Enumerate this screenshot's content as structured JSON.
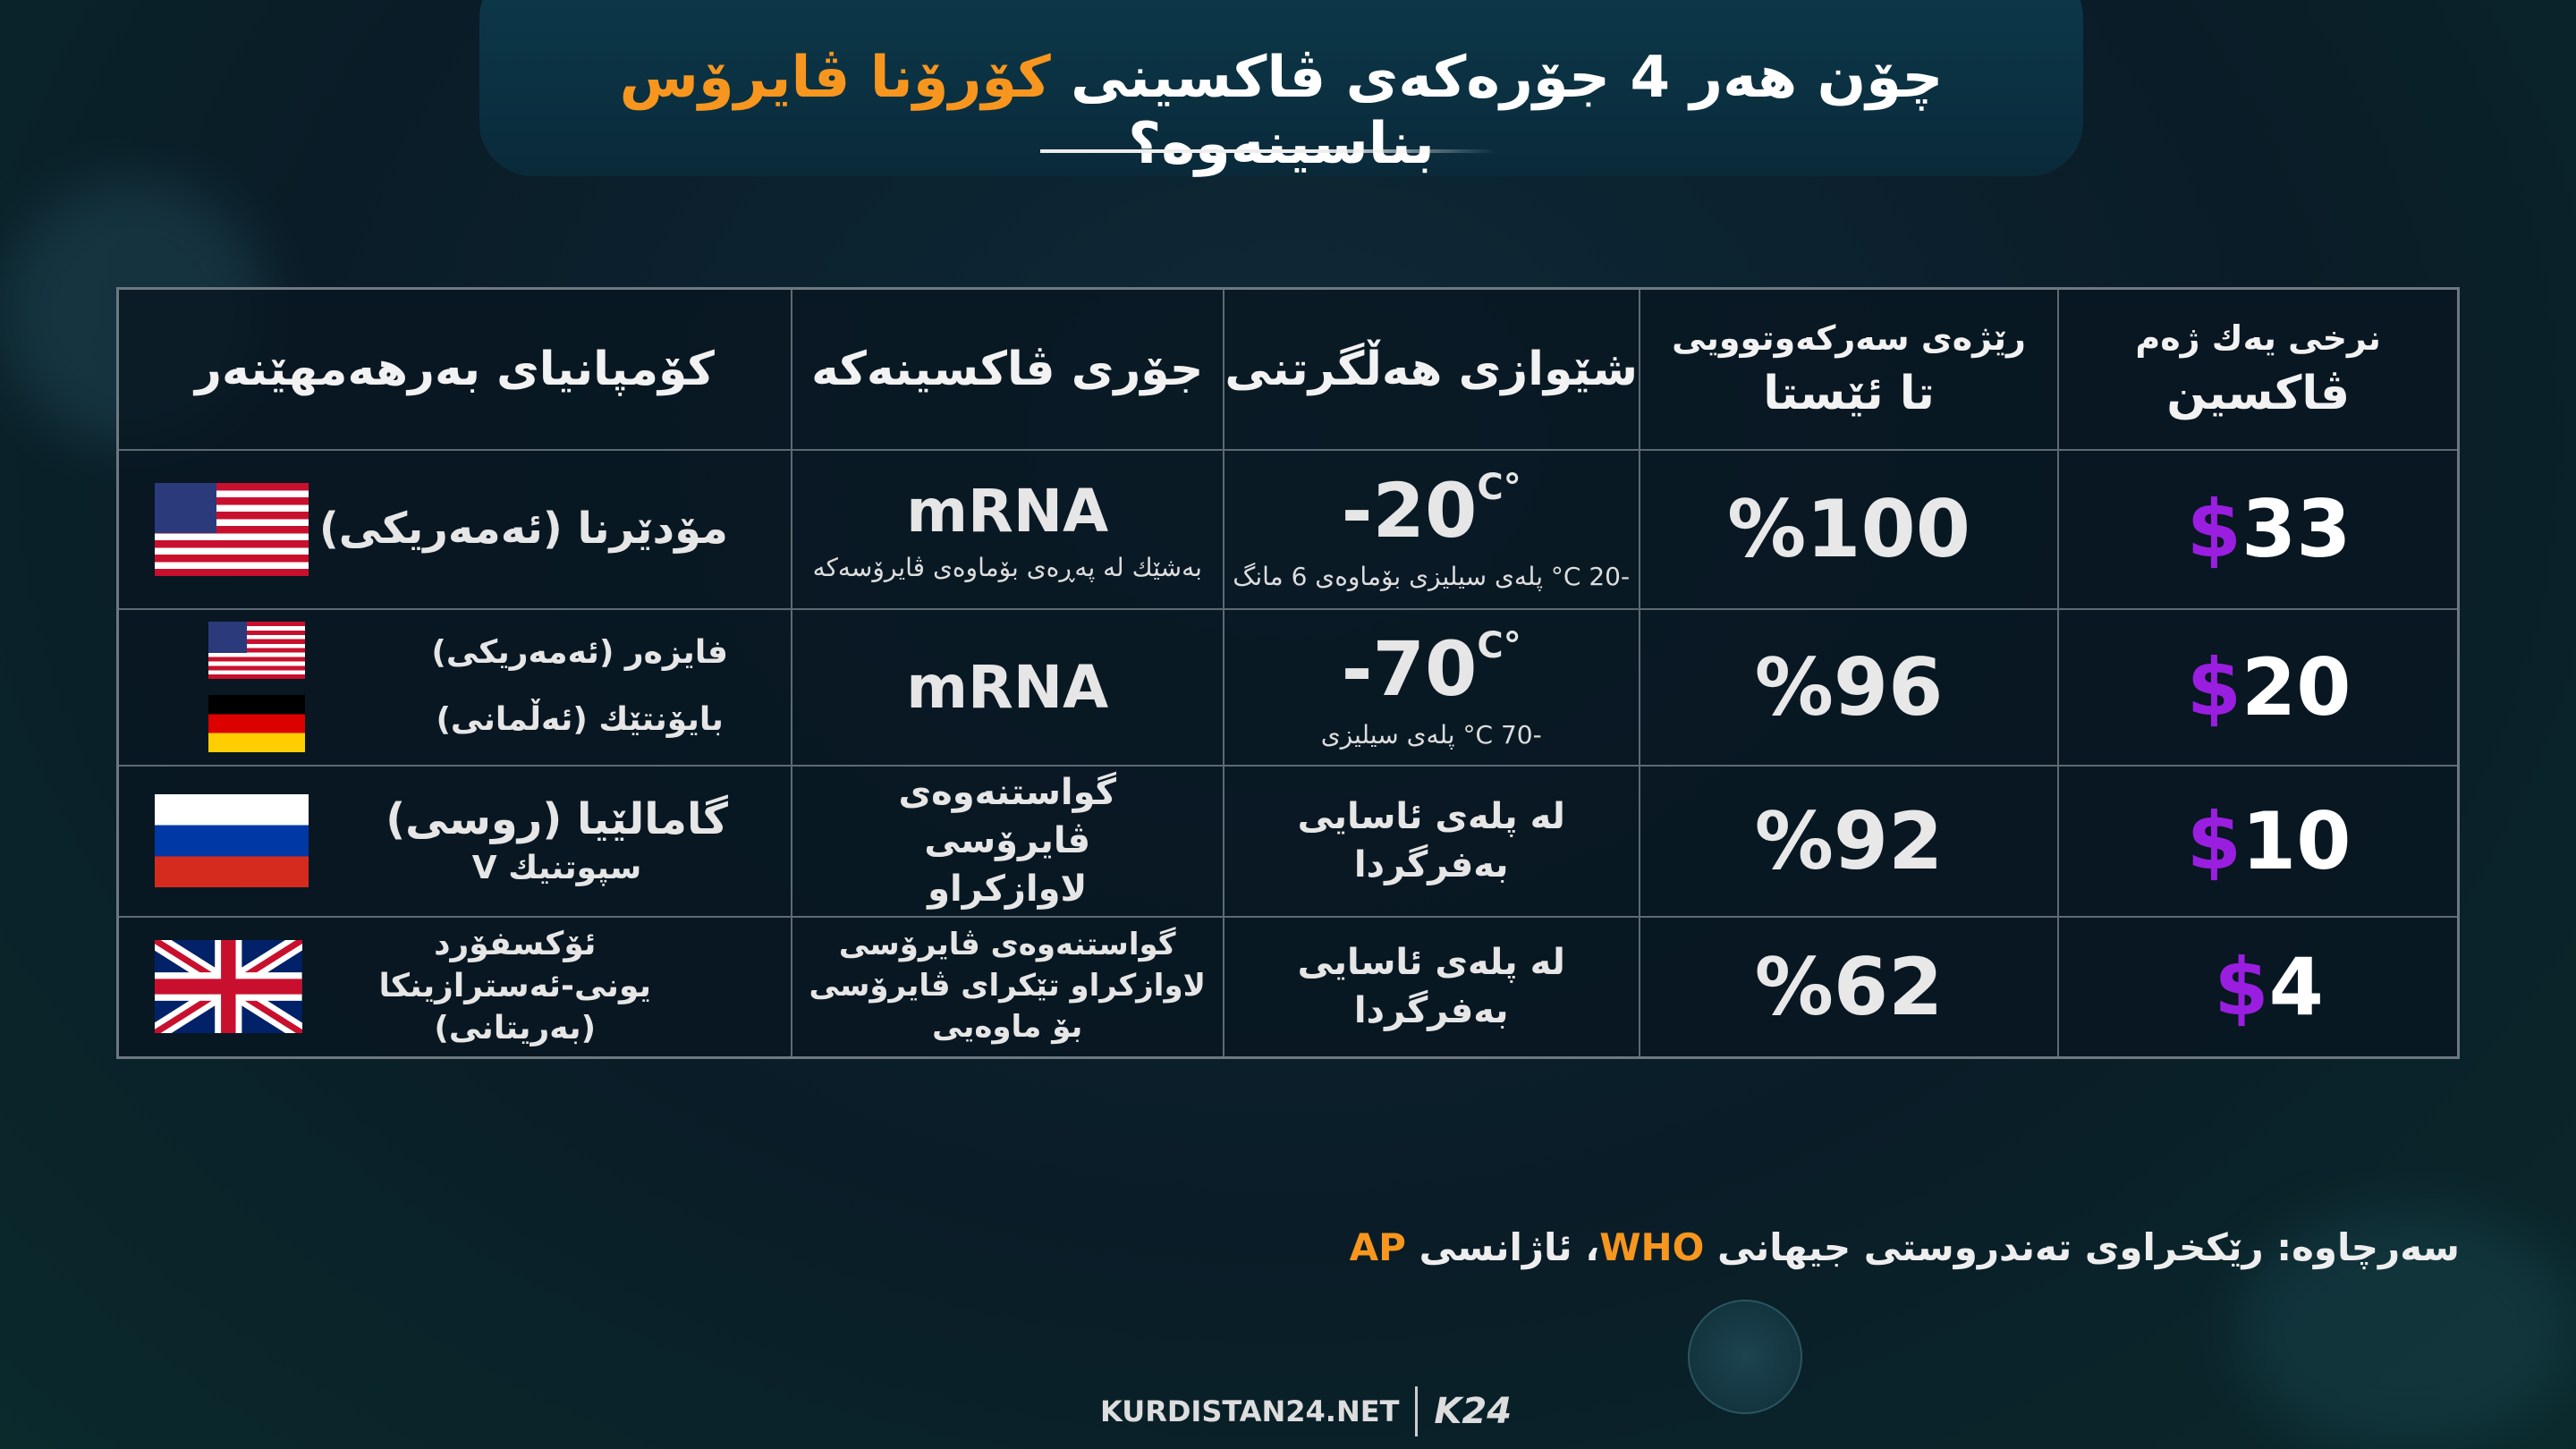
{
  "title": {
    "part1": "چۆن هەر 4 جۆرەکەی ڤاکسینی ",
    "highlight": "کۆرۆنا ڤایرۆس",
    "part2": " بناسینەوە؟"
  },
  "colors": {
    "accent": "#f7961e",
    "dollar": "#9a1ee0"
  },
  "table": {
    "headers": {
      "price_line1": "نرخی یەك ژەم",
      "price_line2": "ڤاکسین",
      "success_line1": "رێژەی سەرکەوتوویی",
      "success_line2": "تا ئێستا",
      "storage": "شێوازی هەڵگرتنی",
      "type": "جۆری ڤاکسینەکە",
      "company": "کۆمپانیای بەرهەمهێنەر"
    },
    "rows": [
      {
        "currency": "$",
        "price": "33",
        "success": "%100",
        "storage_temp": "-20",
        "storage_unit": "C°",
        "storage_note": "-20 C° پلەی سیلیزی بۆماوەی 6 مانگ",
        "type": "mRNA",
        "type_note": "بەشێك لە پەڕەی بۆماوەی ڤایرۆسەکە",
        "company": "مۆدێرنا (ئەمەریکی)",
        "flags": [
          "us-flag-icon"
        ]
      },
      {
        "currency": "$",
        "price": "20",
        "success": "%96",
        "storage_temp": "-70",
        "storage_unit": "C°",
        "storage_note": "-70 C° پلەی سیلیزی",
        "type": "mRNA",
        "company1": "فایزەر (ئەمەریکی)",
        "company2": "بایۆنتێك (ئەڵمانی)",
        "flags": [
          "us-flag-icon",
          "germany-flag-icon"
        ]
      },
      {
        "currency": "$",
        "price": "10",
        "success": "%92",
        "storage": "لە پلەی ئاسایی بەفرگردا",
        "type": "گواستنەوەی ڤایرۆسی لاوازکراو",
        "company": "گامالێیا (روسی)",
        "company_sub": "سپوتنیك V",
        "flags": [
          "russia-flag-icon"
        ]
      },
      {
        "currency": "$",
        "price": "4",
        "success": "%62",
        "storage": "لە پلەی ئاسایی بەفرگردا",
        "type": "گواستنەوەی ڤایرۆسی لاوازکراو تێکرای ڤایرۆسی بۆ ماوەیی",
        "company1": "ئۆکسفۆرد",
        "company2": "یونی-ئەسترازینکا (بەریتانی)",
        "flags": [
          "uk-flag-icon"
        ]
      }
    ]
  },
  "source": {
    "prefix": "سەرچاوە: رێکخراوی تەندروستی جیهانی ",
    "who": "WHO",
    "mid": "، ئاژانسی ",
    "ap": "AP"
  },
  "footer": {
    "site": "KURDISTAN24.NET",
    "logo": "K24"
  }
}
